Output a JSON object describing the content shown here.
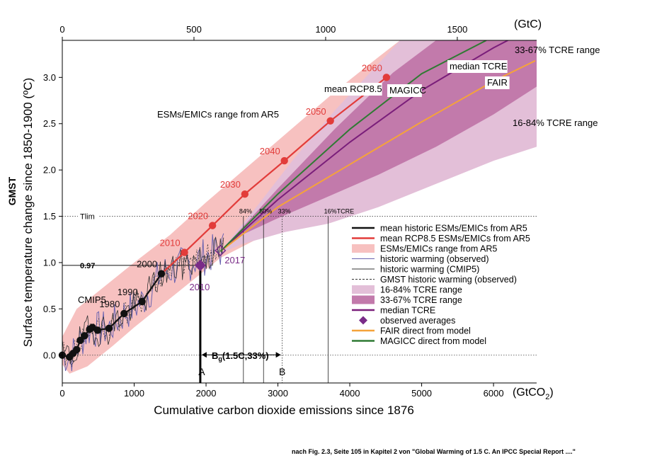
{
  "chart_data": {
    "type": "line",
    "xlabel": "Cumulative carbon dioxide emissions since 1876",
    "x_unit": "(GtCO",
    "x_unit_sub": "2",
    "x_unit_close": ")",
    "x2_unit": "(GtC)",
    "ylabel_bold": "GMST",
    "ylabel": "Surface temperature change since 1850-1900 (ºC)",
    "xlim": [
      0,
      6600
    ],
    "ylim": [
      -0.3,
      3.4
    ],
    "x_ticks": [
      0,
      1000,
      2000,
      3000,
      4000,
      5000,
      6000
    ],
    "x_tick_labels": [
      "0",
      "1000",
      "2000",
      "3000",
      "4000",
      "5000",
      "6000"
    ],
    "x2_ticks": [
      0,
      500,
      1000,
      1500
    ],
    "x2_tick_labels": [
      "0",
      "500",
      "1000",
      "1500"
    ],
    "y_ticks": [
      0.0,
      0.5,
      1.0,
      1.5,
      2.0,
      2.5,
      3.0
    ],
    "y_tick_labels": [
      "0.0",
      "0.5",
      "1.0",
      "1.5",
      "2.0",
      "2.5",
      "3.0"
    ],
    "colors": {
      "esm_range": "#f7c1c0",
      "tcre_16_84": "#e3bfd8",
      "tcre_33_67": "#c27aab",
      "historic_esm": "#111111",
      "rcp85": "#e23c3a",
      "observed": "#6a63b0",
      "cmip5": "#333333",
      "median_tcre": "#7a1e7a",
      "fair": "#f5a33a",
      "magicc": "#2f7a33",
      "observed_avg": "#7a2c88"
    },
    "series": [
      {
        "name": "mean historic ESMs/EMICs from AR5",
        "key": "historic_esm",
        "x": [
          0,
          100,
          150,
          200,
          250,
          310,
          380,
          420,
          490,
          650,
          860,
          1110,
          1380
        ],
        "y": [
          0.0,
          -0.02,
          0.02,
          0.06,
          0.16,
          0.21,
          0.28,
          0.3,
          0.27,
          0.29,
          0.45,
          0.58,
          0.88
        ],
        "point_labels": [
          "",
          "",
          "",
          "",
          "",
          "",
          "",
          "",
          "",
          "",
          "1980",
          "1990",
          "2000"
        ]
      },
      {
        "name": "mean RCP8.5 ESMs/EMICs from AR5",
        "key": "rcp85",
        "x": [
          1380,
          1700,
          2090,
          2540,
          3090,
          3730,
          4510
        ],
        "y": [
          0.88,
          1.11,
          1.4,
          1.74,
          2.1,
          2.53,
          3.0
        ],
        "point_labels": [
          "",
          "2010",
          "2020",
          "2030",
          "2040",
          "2050",
          "2060"
        ]
      },
      {
        "name": "median TCRE",
        "key": "median_tcre",
        "x": [
          2200,
          3000,
          4000,
          5000,
          6000,
          6200
        ],
        "y": [
          1.12,
          1.68,
          2.3,
          2.86,
          3.32,
          3.4
        ]
      },
      {
        "name": "FAIR direct from model",
        "key": "fair",
        "x": [
          2200,
          3000,
          4000,
          5000,
          6000,
          6580
        ],
        "y": [
          1.12,
          1.6,
          2.06,
          2.52,
          2.96,
          3.18
        ]
      },
      {
        "name": "MAGICC direct from model",
        "key": "magicc",
        "x": [
          2200,
          3000,
          4000,
          5000,
          5900
        ],
        "y": [
          1.12,
          1.74,
          2.44,
          3.04,
          3.4
        ]
      }
    ],
    "observed_averages": [
      {
        "x": 1920,
        "y": 0.97,
        "label": "2010"
      },
      {
        "x": 2200,
        "y": 1.13,
        "label": "2017"
      }
    ],
    "annotations": {
      "tlim_label": "Tlim",
      "tlim_value": 1.5,
      "t097_label": "0.97",
      "t097_value": 0.97,
      "cmip5_label": "CMIP5",
      "esm_range_label": "ESMs/EMICs range from AR5",
      "mean_rcp_label": "mean RCP8.5",
      "magicc_label": "MAGICC",
      "median_label": "median TCRE",
      "fair_label": "FAIR",
      "range_33_67_label": "33-67% TCRE range",
      "range_16_84_label": "16-84% TCRE range",
      "percentiles": [
        {
          "x": 2520,
          "label": "84%"
        },
        {
          "x": 2800,
          "label": "50%"
        },
        {
          "x": 3060,
          "label": "33%"
        },
        {
          "x": 3700,
          "label": "16%TCRE"
        }
      ],
      "budget_label": "B",
      "budget_sub": "g",
      "budget_rest": "(1.5C,33%)",
      "point_a": "A",
      "point_b": "B",
      "a_x": 1920,
      "b_x": 3060
    },
    "legend": {
      "position": "bottom-right",
      "entries": [
        {
          "label": "mean historic ESMs/EMICs from AR5",
          "kind": "line",
          "key": "historic_esm"
        },
        {
          "label": "mean RCP8.5 ESMs/EMICs from AR5",
          "kind": "line",
          "key": "rcp85"
        },
        {
          "label": "ESMs/EMICs range from AR5",
          "kind": "box",
          "key": "esm_range"
        },
        {
          "label": "historic warming (observed)",
          "kind": "thin",
          "key": "observed"
        },
        {
          "label": "historic warming (CMIP5)",
          "kind": "thin",
          "key": "cmip5"
        },
        {
          "label": "GMST historic warming (observed)",
          "kind": "dashed",
          "key": "cmip5"
        },
        {
          "label": "16-84% TCRE range",
          "kind": "box",
          "key": "tcre_16_84"
        },
        {
          "label": "33-67% TCRE range",
          "kind": "box",
          "key": "tcre_33_67"
        },
        {
          "label": "median TCRE",
          "kind": "line",
          "key": "median_tcre"
        },
        {
          "label": "observed averages",
          "kind": "diamond",
          "key": "observed_avg"
        },
        {
          "label": "FAIR direct from model",
          "kind": "line",
          "key": "fair"
        },
        {
          "label": "MAGICC direct from model",
          "kind": "line",
          "key": "magicc"
        }
      ]
    }
  },
  "credit": "nach Fig. 2.3, Seite 105 in Kapitel 2 von \"Global Warming of 1.5 C. An IPCC Special Report ....\""
}
